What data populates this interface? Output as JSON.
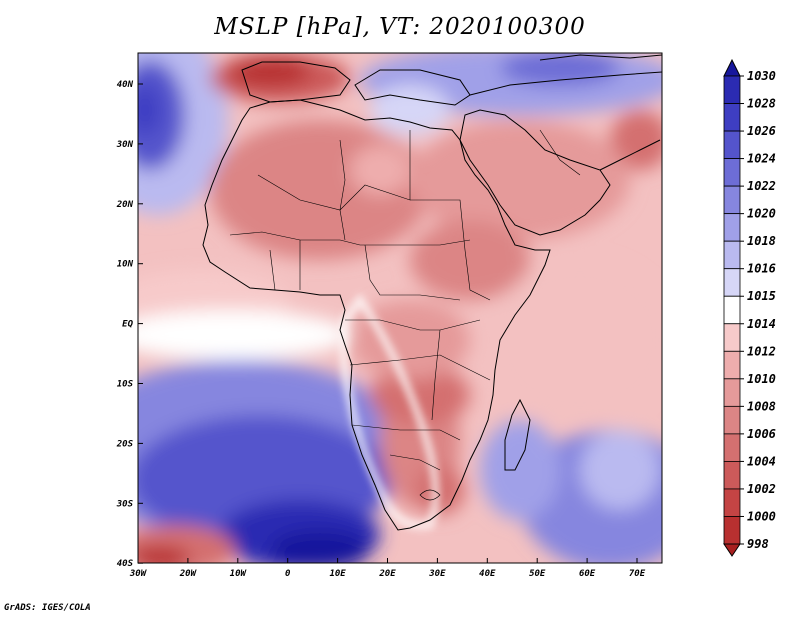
{
  "title": "MSLP [hPa], VT: 2020100300",
  "credit": "GrADS: IGES/COLA",
  "map": {
    "lat_labels": [
      "40N",
      "30N",
      "20N",
      "10N",
      "EQ",
      "10S",
      "20S",
      "30S",
      "40S"
    ],
    "lon_labels": [
      "30W",
      "20W",
      "10W",
      "0",
      "10E",
      "20E",
      "30E",
      "40E",
      "50E",
      "60E",
      "70E"
    ],
    "lat_range": [
      -40,
      45
    ],
    "lon_range": [
      -30,
      75
    ],
    "variable": "MSLP",
    "units": "hPa",
    "valid_time": "2020100300"
  },
  "colorbar": {
    "levels": [
      "1030",
      "1028",
      "1026",
      "1024",
      "1022",
      "1020",
      "1018",
      "1016",
      "1015",
      "1014",
      "1012",
      "1010",
      "1008",
      "1006",
      "1004",
      "1002",
      "1000",
      "998"
    ],
    "colors": [
      "#17179c",
      "#2b2bb2",
      "#3e3ec2",
      "#5454cc",
      "#6d6dd6",
      "#8686df",
      "#a0a0e8",
      "#babaf0",
      "#d6d6f7",
      "#ffffff",
      "#f7caca",
      "#eeadad",
      "#e59a9a",
      "#dc8585",
      "#d47070",
      "#cc5a5a",
      "#c44444",
      "#b83030",
      "#a81f1f"
    ]
  }
}
